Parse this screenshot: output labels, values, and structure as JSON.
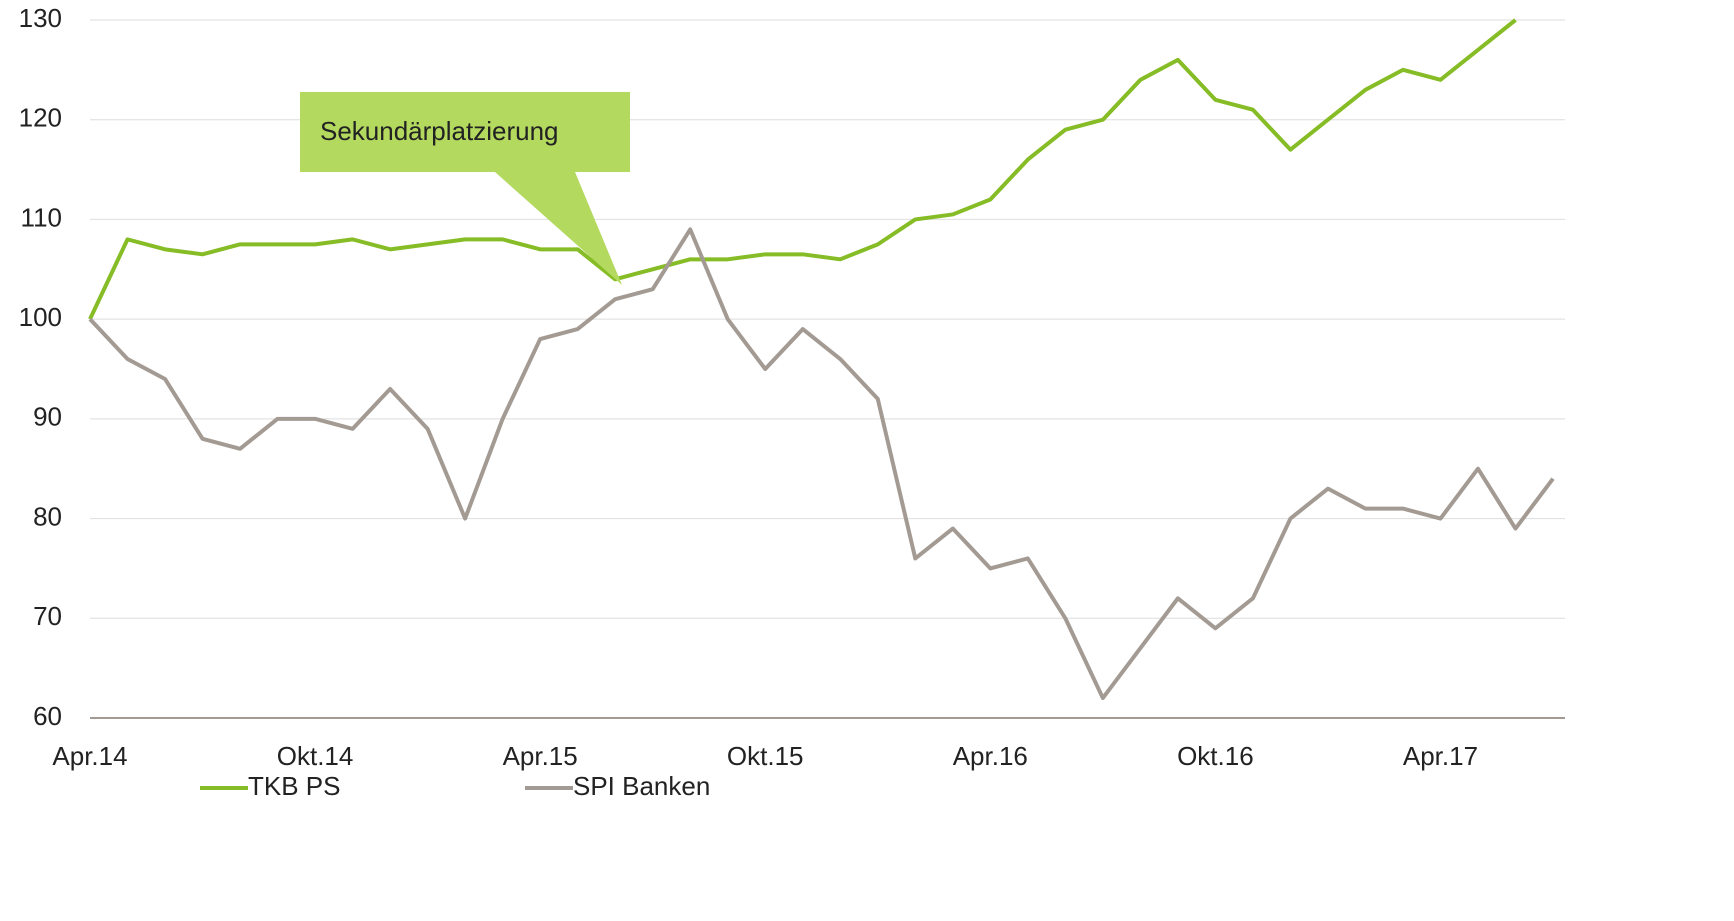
{
  "chart_data": {
    "type": "line",
    "x": [
      "2014-04",
      "2014-05",
      "2014-06",
      "2014-07",
      "2014-08",
      "2014-09",
      "2014-10",
      "2014-11",
      "2014-12",
      "2015-01",
      "2015-02",
      "2015-03",
      "2015-04",
      "2015-05",
      "2015-06",
      "2015-07",
      "2015-08",
      "2015-09",
      "2015-10",
      "2015-11",
      "2015-12",
      "2016-01",
      "2016-02",
      "2016-03",
      "2016-04",
      "2016-05",
      "2016-06",
      "2016-07",
      "2016-08",
      "2016-09",
      "2016-10",
      "2016-11",
      "2016-12",
      "2017-01",
      "2017-02",
      "2017-03",
      "2017-04",
      "2017-05",
      "2017-06",
      "2017-07"
    ],
    "series": [
      {
        "name": "TKB PS",
        "color": "#86bc25",
        "values": [
          100,
          108,
          107,
          106.5,
          107.5,
          107.5,
          107.5,
          108,
          107,
          107.5,
          108,
          108,
          107,
          107,
          104,
          105,
          106,
          106,
          106.5,
          106.5,
          106,
          107.5,
          110,
          110.5,
          112,
          116,
          119,
          120,
          124,
          126,
          122,
          121,
          117,
          120,
          123,
          125,
          124,
          127,
          130,
          null
        ]
      },
      {
        "name": "SPI Banken",
        "color": "#a39b93",
        "values": [
          100,
          96,
          94,
          88,
          87,
          90,
          90,
          89,
          93,
          89,
          80,
          90,
          98,
          99,
          102,
          103,
          109,
          100,
          95,
          99,
          96,
          92,
          76,
          79,
          75,
          76,
          70,
          62,
          67,
          72,
          69,
          72,
          80,
          83,
          81,
          81,
          80,
          85,
          79,
          84
        ]
      }
    ],
    "annotations": [
      "Sekundärplatzierung"
    ],
    "xlim": [
      "2014-04",
      "2017-07"
    ],
    "xticks": [
      {
        "value": "2014-04",
        "label": "Apr.14"
      },
      {
        "value": "2014-10",
        "label": "Okt.14"
      },
      {
        "value": "2015-04",
        "label": "Apr.15"
      },
      {
        "value": "2015-10",
        "label": "Okt.15"
      },
      {
        "value": "2016-04",
        "label": "Apr.16"
      },
      {
        "value": "2016-10",
        "label": "Okt.16"
      },
      {
        "value": "2017-04",
        "label": "Apr.17"
      }
    ],
    "ylim": [
      60,
      130
    ],
    "yticks": [
      60,
      70,
      80,
      90,
      100,
      110,
      120,
      130
    ],
    "grid": true
  }
}
